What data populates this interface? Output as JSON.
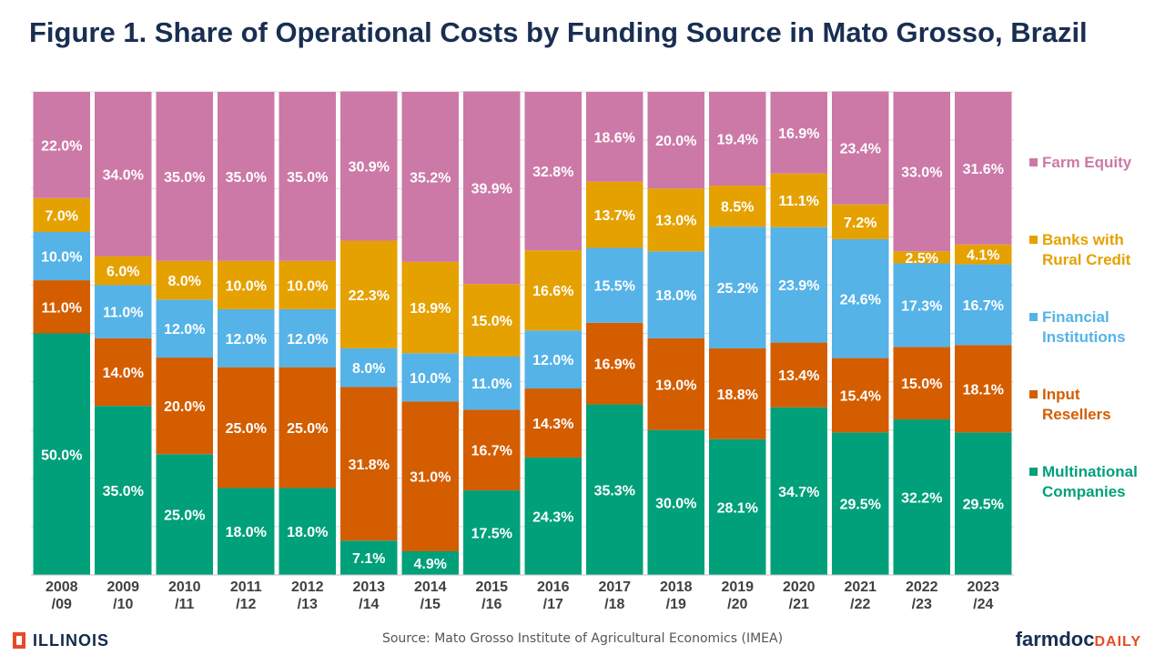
{
  "title": "Figure 1. Share of Operational Costs by Funding Source in Mato Grosso, Brazil",
  "source": "Source: Mato Grosso Institute of Agricultural Economics (IMEA)",
  "logos": {
    "illinois": "ILLINOIS",
    "farmdoc_part1": "farmdoc",
    "farmdoc_part2": "DAILY"
  },
  "chart_data": {
    "type": "bar",
    "stacked": true,
    "ylim": [
      0,
      100
    ],
    "grid": true,
    "legend_position": "right",
    "categories": [
      [
        "2008",
        "/09"
      ],
      [
        "2009",
        "/10"
      ],
      [
        "2010",
        "/11"
      ],
      [
        "2011",
        "/12"
      ],
      [
        "2012",
        "/13"
      ],
      [
        "2013",
        "/14"
      ],
      [
        "2014",
        "/15"
      ],
      [
        "2015",
        "/16"
      ],
      [
        "2016",
        "/17"
      ],
      [
        "2017",
        "/18"
      ],
      [
        "2018",
        "/19"
      ],
      [
        "2019",
        "/20"
      ],
      [
        "2020",
        "/21"
      ],
      [
        "2021",
        "/22"
      ],
      [
        "2022",
        "/23"
      ],
      [
        "2023",
        "/24"
      ]
    ],
    "series": [
      {
        "name": [
          "Multinational",
          "Companies"
        ],
        "color": "#00a07a",
        "values": [
          50.0,
          35.0,
          25.0,
          18.0,
          18.0,
          7.1,
          4.9,
          17.5,
          24.3,
          35.3,
          30.0,
          28.1,
          34.7,
          29.5,
          32.2,
          29.5
        ]
      },
      {
        "name": [
          "Input",
          "Resellers"
        ],
        "color": "#d45d00",
        "values": [
          11.0,
          14.0,
          20.0,
          25.0,
          25.0,
          31.8,
          31.0,
          16.7,
          14.3,
          16.9,
          19.0,
          18.8,
          13.4,
          15.4,
          15.0,
          18.1
        ]
      },
      {
        "name": [
          "Financial",
          "Institutions"
        ],
        "color": "#55b3e8",
        "values": [
          10.0,
          11.0,
          12.0,
          12.0,
          12.0,
          8.0,
          10.0,
          11.0,
          12.0,
          15.5,
          18.0,
          25.2,
          23.9,
          24.6,
          17.3,
          16.7
        ]
      },
      {
        "name": [
          "Banks with",
          "Rural Credit"
        ],
        "color": "#e5a100",
        "values": [
          7.0,
          6.0,
          8.0,
          10.0,
          10.0,
          22.3,
          18.9,
          15.0,
          16.6,
          13.7,
          13.0,
          8.5,
          11.1,
          7.2,
          2.5,
          4.1
        ]
      },
      {
        "name": [
          "Farm Equity"
        ],
        "color": "#cc79a7",
        "values": [
          22.0,
          34.0,
          35.0,
          35.0,
          35.0,
          30.9,
          35.2,
          39.9,
          32.8,
          18.6,
          20.0,
          19.4,
          16.9,
          23.4,
          33.0,
          31.6
        ]
      }
    ]
  }
}
